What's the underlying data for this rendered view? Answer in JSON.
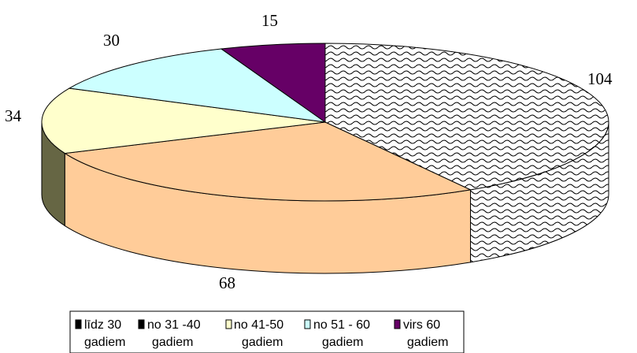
{
  "chart_data": {
    "type": "pie",
    "style": "3d",
    "categories": [
      "līdz 30 gadiem",
      "no 31 -40 gadiem",
      "no 41-50 gadiem",
      "no 51 - 60 gadiem",
      "virs 60 gadiem"
    ],
    "values": [
      104,
      68,
      34,
      30,
      15
    ],
    "data_labels": [
      "104",
      "68",
      "34",
      "30",
      "15"
    ],
    "colors": {
      "slice_1": "pattern-wave",
      "slice_2": "#FFCC99",
      "slice_3": "#FFFFCC",
      "slice_4": "#CCFFFF",
      "slice_5": "#660066"
    },
    "legend": {
      "placement": "bottom",
      "entries": [
        {
          "line1": "līdz 30",
          "line2": "gadiem",
          "swatch": "#000000"
        },
        {
          "line1": "no 31 -40",
          "line2": "gadiem",
          "swatch": "#000000"
        },
        {
          "line1": "no 41-50",
          "line2": "gadiem",
          "swatch": "#FFFFCC"
        },
        {
          "line1": "no 51 - 60",
          "line2": "gadiem",
          "swatch": "#CCFFFF"
        },
        {
          "line1": "virs 60",
          "line2": "gadiem",
          "swatch": "#660066"
        }
      ]
    }
  }
}
